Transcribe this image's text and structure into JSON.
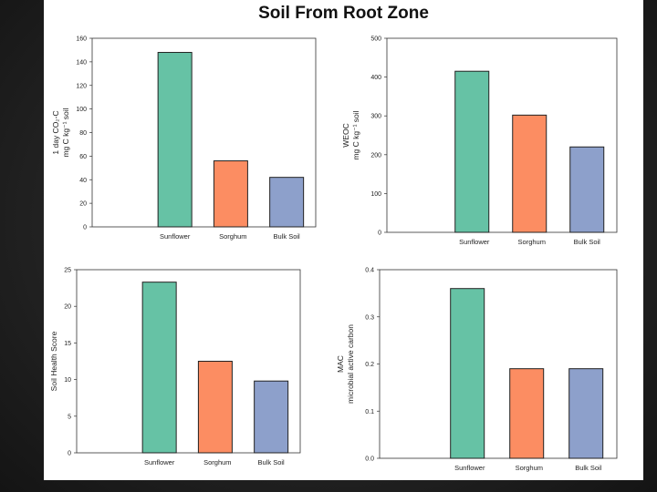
{
  "page": {
    "title": "Soil From Root Zone"
  },
  "chart_data": [
    {
      "type": "bar",
      "categories": [
        "Sunflower",
        "Sorghum",
        "Bulk Soil"
      ],
      "values": [
        148,
        56,
        42
      ],
      "ylabel_lines": [
        "1 day CO₂-C",
        "mg C kg⁻¹ soil"
      ],
      "ylim": [
        0,
        160
      ],
      "yticks": [
        "0",
        "20",
        "40",
        "60",
        "80",
        "100",
        "120",
        "140",
        "160"
      ],
      "colors": [
        "#66c2a5",
        "#fc8d62",
        "#8da0cb"
      ]
    },
    {
      "type": "bar",
      "categories": [
        "Sunflower",
        "Sorghum",
        "Bulk Soil"
      ],
      "values": [
        415,
        302,
        220
      ],
      "ylabel_lines": [
        "WEOC",
        "mg C kg⁻¹ soil"
      ],
      "ylim": [
        0,
        500
      ],
      "yticks": [
        "0",
        "100",
        "200",
        "300",
        "400",
        "500"
      ],
      "colors": [
        "#66c2a5",
        "#fc8d62",
        "#8da0cb"
      ]
    },
    {
      "type": "bar",
      "categories": [
        "Sunflower",
        "Sorghum",
        "Bulk Soil"
      ],
      "values": [
        23.3,
        12.5,
        9.8
      ],
      "ylabel_lines": [
        "Soil Health Score"
      ],
      "ylim": [
        0,
        25
      ],
      "yticks": [
        "0",
        "5",
        "10",
        "15",
        "20",
        "25"
      ],
      "colors": [
        "#66c2a5",
        "#fc8d62",
        "#8da0cb"
      ]
    },
    {
      "type": "bar",
      "categories": [
        "Sunflower",
        "Sorghum",
        "Bulk Soil"
      ],
      "values": [
        0.36,
        0.19,
        0.19
      ],
      "ylabel_lines": [
        "MAC",
        "microbial active carbon"
      ],
      "ylim": [
        0,
        0.4
      ],
      "yticks": [
        "0.0",
        "0.1",
        "0.2",
        "0.3",
        "0.4"
      ],
      "colors": [
        "#66c2a5",
        "#fc8d62",
        "#8da0cb"
      ]
    }
  ]
}
